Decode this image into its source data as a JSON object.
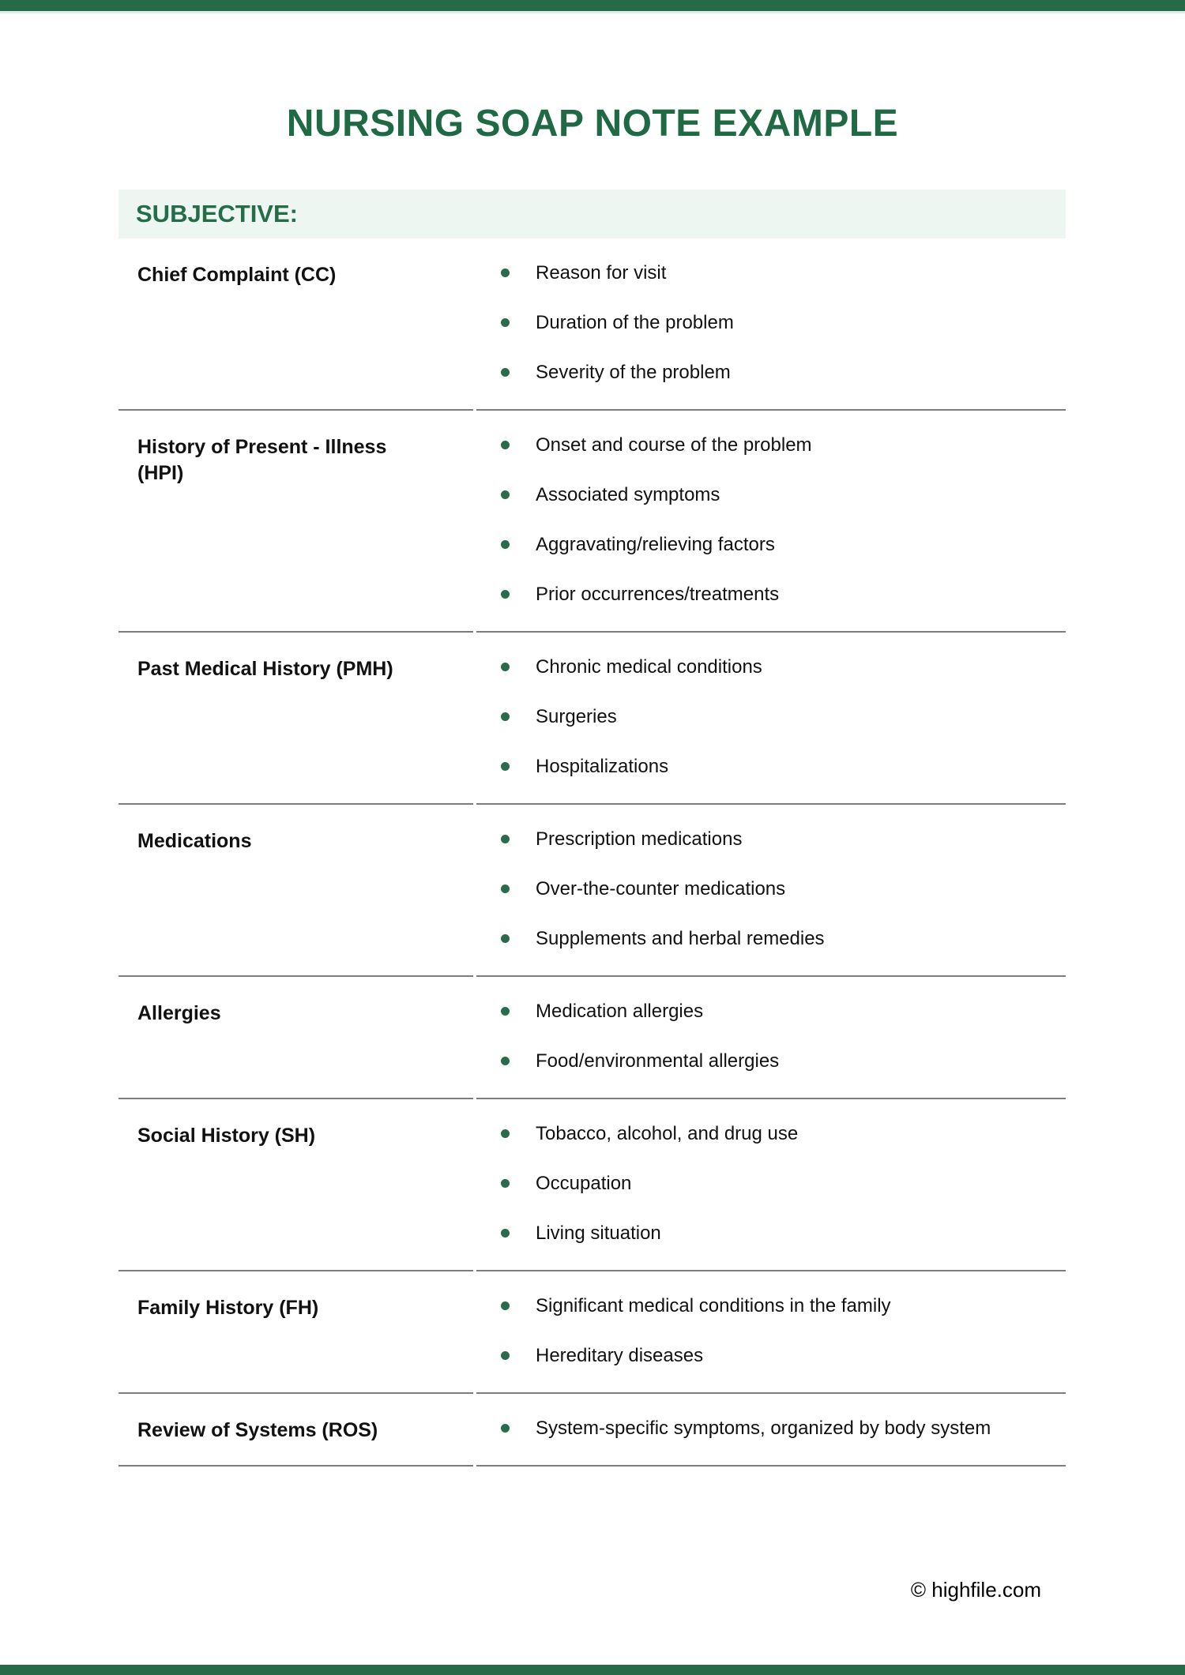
{
  "page": {
    "title": "NURSING SOAP NOTE EXAMPLE",
    "footer": "© highfile.com"
  },
  "section": {
    "header": "SUBJECTIVE:"
  },
  "table": {
    "rows": [
      {
        "label": "Chief Complaint (CC)",
        "bullets": [
          "Reason for visit",
          "Duration of the problem",
          "Severity of the problem"
        ]
      },
      {
        "label": "History of Present - Illness (HPI)",
        "bullets": [
          "Onset and course of the problem",
          "Associated symptoms",
          "Aggravating/relieving factors",
          "Prior occurrences/treatments"
        ]
      },
      {
        "label": "Past Medical History (PMH)",
        "bullets": [
          "Chronic medical conditions",
          "Surgeries",
          "Hospitalizations"
        ]
      },
      {
        "label": "Medications",
        "bullets": [
          "Prescription medications",
          "Over-the-counter medications",
          "Supplements and herbal remedies"
        ]
      },
      {
        "label": "Allergies",
        "bullets": [
          "Medication allergies",
          "Food/environmental allergies"
        ]
      },
      {
        "label": "Social History (SH)",
        "bullets": [
          "Tobacco, alcohol, and drug use",
          "Occupation",
          "Living situation"
        ]
      },
      {
        "label": "Family History (FH)",
        "bullets": [
          "Significant medical conditions in the family",
          "Hereditary diseases"
        ]
      },
      {
        "label": "Review of Systems (ROS)",
        "bullets": [
          "System-specific symptoms, organized by body system"
        ]
      }
    ]
  },
  "colors": {
    "accent-green": "#266a47",
    "title-green": "#1f6a45",
    "band-bg": "#edf6f1",
    "band-text": "#256c49",
    "bullet-green": "#2a6b4d",
    "separator-gray": "#7d7d7d"
  }
}
